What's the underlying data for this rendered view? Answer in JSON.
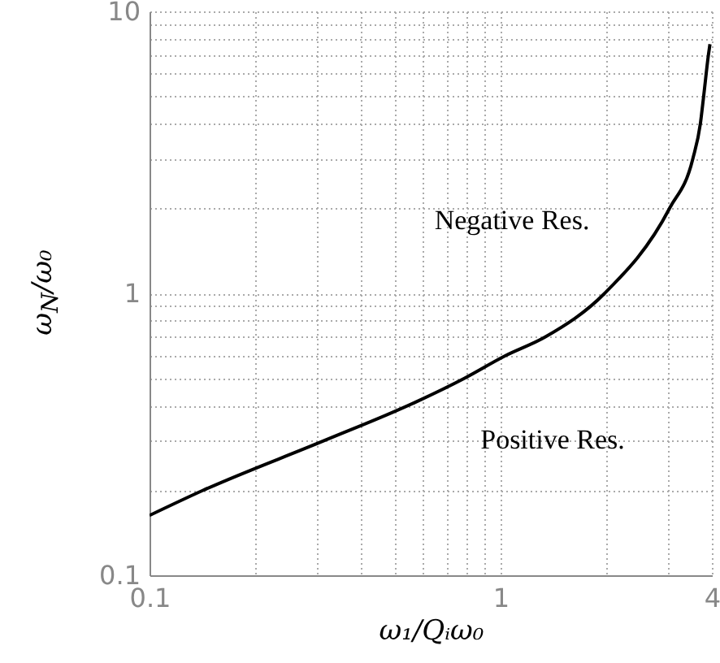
{
  "chart_data": {
    "type": "line",
    "xlabel": "ω₁/Qᵢω₀",
    "ylabel": "ω$_{N}$/ω₀",
    "log": "xy",
    "grid": true,
    "marker": "none",
    "line_style": "solid",
    "xlim": [
      0.1,
      4
    ],
    "ylim": [
      0.1,
      10
    ],
    "xticks": [
      0.1,
      {
        "value": 0.2,
        "label": null
      },
      {
        "value": 0.3,
        "label": null
      },
      {
        "value": 0.4,
        "label": null
      },
      {
        "value": 0.5,
        "label": null
      },
      {
        "value": 0.6,
        "label": null
      },
      {
        "value": 0.7,
        "label": null
      },
      {
        "value": 0.8,
        "label": null
      },
      {
        "value": 0.9,
        "label": null
      },
      1,
      {
        "value": 2,
        "label": null
      },
      {
        "value": 3,
        "label": null
      },
      4
    ],
    "yticks": [
      0.1,
      {
        "value": 0.2,
        "label": null
      },
      {
        "value": 0.3,
        "label": null
      },
      {
        "value": 0.4,
        "label": null
      },
      {
        "value": 0.5,
        "label": null
      },
      {
        "value": 0.6,
        "label": null
      },
      {
        "value": 0.7,
        "label": null
      },
      {
        "value": 0.8,
        "label": null
      },
      {
        "value": 0.9,
        "label": null
      },
      1,
      {
        "value": 2,
        "label": null
      },
      {
        "value": 3,
        "label": null
      },
      {
        "value": 4,
        "label": null
      },
      {
        "value": 5,
        "label": null
      },
      {
        "value": 6,
        "label": null
      },
      {
        "value": 7,
        "label": null
      },
      {
        "value": 8,
        "label": null
      },
      {
        "value": 9,
        "label": null
      },
      10
    ],
    "series": [
      {
        "color": "#000000",
        "x": [
          0.1,
          0.142,
          0.314,
          0.57,
          0.79,
          1.03,
          1.34,
          1.98,
          3.03,
          3.53,
          3.71,
          3.79,
          3.91,
          3.95
        ],
        "values": [
          0.163,
          0.2,
          0.3,
          0.41,
          0.5,
          0.6,
          0.7,
          1,
          2,
          3,
          4,
          5,
          7,
          7.65
        ]
      }
    ],
    "annotations": [
      "Negative Res.",
      "Positive Res."
    ]
  }
}
